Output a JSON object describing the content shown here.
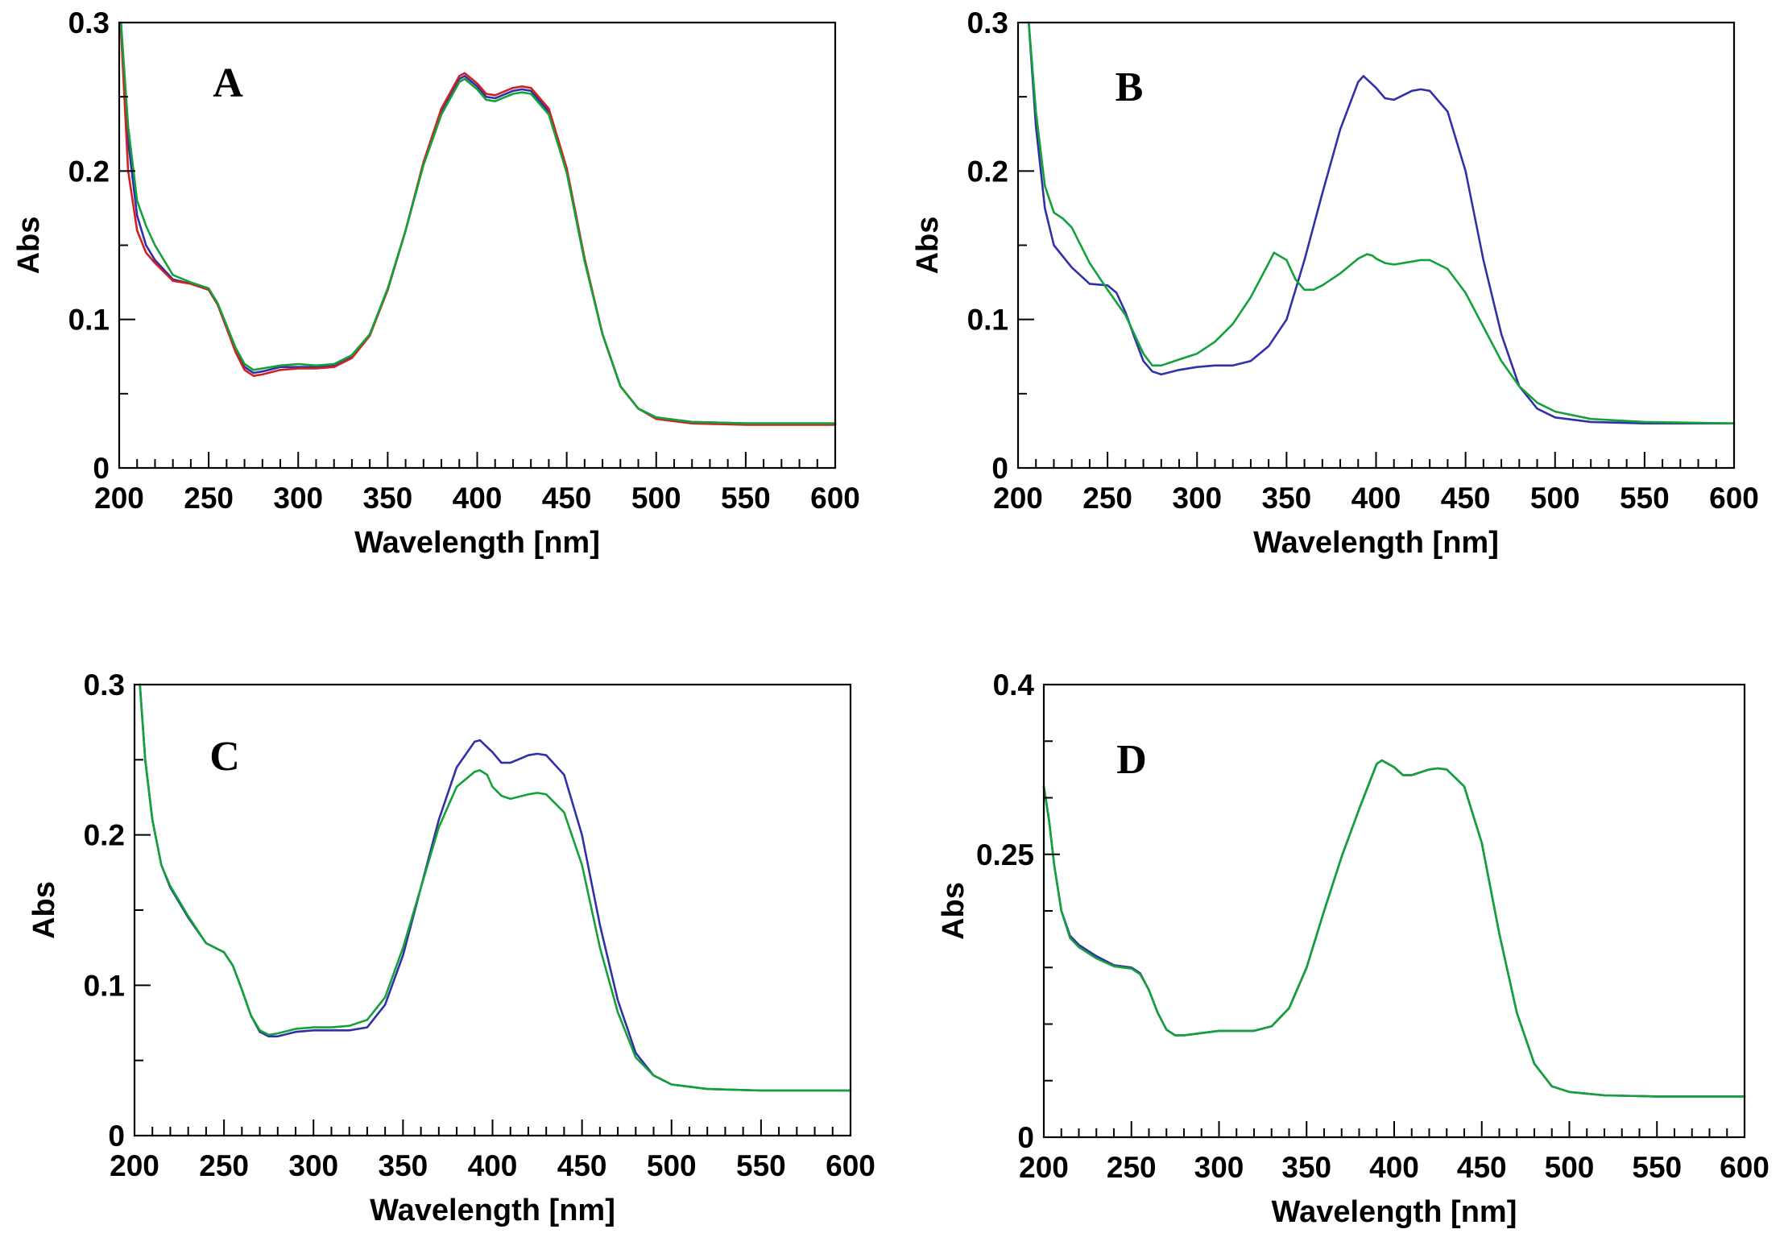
{
  "chart_data": [
    {
      "panel": "A",
      "type": "line",
      "xlabel": "Wavelength [nm]",
      "ylabel": "Abs",
      "xlim": [
        200,
        600
      ],
      "ylim": [
        0,
        0.3
      ],
      "xticks": [
        200,
        250,
        300,
        350,
        400,
        450,
        500,
        550,
        600
      ],
      "yticks": [
        0,
        0.1,
        0.2,
        0.3
      ],
      "ytick_labels": [
        "0",
        "0.1",
        "0.2",
        "0.3"
      ],
      "grid": false,
      "series": [
        {
          "name": "blue",
          "color": "#3030a8",
          "x": [
            201,
            205,
            210,
            215,
            220,
            230,
            240,
            250,
            255,
            260,
            265,
            270,
            275,
            280,
            290,
            300,
            310,
            320,
            330,
            340,
            350,
            360,
            370,
            380,
            390,
            393,
            400,
            405,
            410,
            420,
            425,
            430,
            440,
            450,
            460,
            470,
            480,
            490,
            500,
            520,
            550,
            600
          ],
          "y": [
            0.3,
            0.22,
            0.17,
            0.15,
            0.14,
            0.127,
            0.124,
            0.12,
            0.11,
            0.095,
            0.08,
            0.068,
            0.064,
            0.065,
            0.068,
            0.068,
            0.068,
            0.069,
            0.075,
            0.09,
            0.12,
            0.16,
            0.205,
            0.24,
            0.262,
            0.264,
            0.257,
            0.25,
            0.249,
            0.254,
            0.255,
            0.254,
            0.24,
            0.2,
            0.14,
            0.09,
            0.055,
            0.04,
            0.034,
            0.031,
            0.03,
            0.03
          ]
        },
        {
          "name": "red",
          "color": "#d42020",
          "x": [
            201,
            205,
            210,
            215,
            220,
            230,
            240,
            250,
            255,
            260,
            265,
            270,
            275,
            280,
            290,
            300,
            310,
            320,
            330,
            340,
            350,
            360,
            370,
            380,
            390,
            393,
            400,
            405,
            410,
            420,
            425,
            430,
            440,
            450,
            460,
            470,
            480,
            490,
            500,
            520,
            550,
            600
          ],
          "y": [
            0.295,
            0.2,
            0.16,
            0.145,
            0.138,
            0.126,
            0.124,
            0.12,
            0.11,
            0.094,
            0.078,
            0.066,
            0.062,
            0.063,
            0.066,
            0.067,
            0.067,
            0.068,
            0.074,
            0.089,
            0.12,
            0.16,
            0.206,
            0.242,
            0.264,
            0.266,
            0.259,
            0.252,
            0.251,
            0.256,
            0.257,
            0.256,
            0.242,
            0.202,
            0.141,
            0.09,
            0.055,
            0.04,
            0.033,
            0.03,
            0.029,
            0.029
          ]
        },
        {
          "name": "green",
          "color": "#13a13a",
          "x": [
            201,
            205,
            210,
            215,
            220,
            230,
            240,
            250,
            255,
            260,
            265,
            270,
            275,
            280,
            290,
            300,
            310,
            320,
            330,
            340,
            350,
            360,
            370,
            380,
            390,
            393,
            400,
            405,
            410,
            420,
            425,
            430,
            440,
            450,
            460,
            470,
            480,
            490,
            500,
            520,
            550,
            600
          ],
          "y": [
            0.3,
            0.23,
            0.18,
            0.163,
            0.15,
            0.13,
            0.125,
            0.121,
            0.111,
            0.096,
            0.081,
            0.07,
            0.066,
            0.067,
            0.069,
            0.07,
            0.069,
            0.07,
            0.076,
            0.09,
            0.121,
            0.16,
            0.204,
            0.238,
            0.26,
            0.262,
            0.255,
            0.248,
            0.247,
            0.252,
            0.253,
            0.252,
            0.238,
            0.199,
            0.139,
            0.09,
            0.055,
            0.04,
            0.034,
            0.031,
            0.03,
            0.03
          ]
        }
      ]
    },
    {
      "panel": "B",
      "type": "line",
      "xlabel": "Wavelength [nm]",
      "ylabel": "Abs",
      "xlim": [
        200,
        600
      ],
      "ylim": [
        0,
        0.3
      ],
      "xticks": [
        200,
        250,
        300,
        350,
        400,
        450,
        500,
        550,
        600
      ],
      "yticks": [
        0,
        0.1,
        0.2,
        0.3
      ],
      "ytick_labels": [
        "0",
        "0.1",
        "0.2",
        "0.3"
      ],
      "grid": false,
      "series": [
        {
          "name": "blue",
          "color": "#3030a8",
          "x": [
            206,
            210,
            215,
            220,
            230,
            240,
            250,
            255,
            260,
            265,
            270,
            275,
            280,
            290,
            300,
            310,
            320,
            330,
            340,
            350,
            360,
            370,
            380,
            390,
            393,
            400,
            405,
            410,
            420,
            425,
            430,
            440,
            450,
            460,
            470,
            480,
            490,
            500,
            520,
            550,
            600
          ],
          "y": [
            0.3,
            0.23,
            0.175,
            0.15,
            0.135,
            0.124,
            0.123,
            0.118,
            0.105,
            0.088,
            0.072,
            0.065,
            0.063,
            0.066,
            0.068,
            0.069,
            0.069,
            0.072,
            0.082,
            0.1,
            0.14,
            0.185,
            0.228,
            0.26,
            0.264,
            0.256,
            0.249,
            0.248,
            0.254,
            0.255,
            0.254,
            0.24,
            0.2,
            0.14,
            0.09,
            0.055,
            0.04,
            0.034,
            0.031,
            0.03,
            0.03
          ]
        },
        {
          "name": "green",
          "color": "#13a13a",
          "x": [
            206,
            210,
            215,
            220,
            225,
            230,
            240,
            250,
            260,
            270,
            275,
            280,
            290,
            300,
            310,
            320,
            330,
            340,
            343,
            350,
            355,
            360,
            365,
            370,
            380,
            390,
            395,
            398,
            400,
            405,
            410,
            420,
            425,
            430,
            440,
            450,
            460,
            470,
            480,
            490,
            500,
            520,
            550,
            600
          ],
          "y": [
            0.3,
            0.24,
            0.19,
            0.172,
            0.168,
            0.162,
            0.138,
            0.12,
            0.103,
            0.077,
            0.069,
            0.069,
            0.073,
            0.077,
            0.085,
            0.097,
            0.115,
            0.138,
            0.145,
            0.14,
            0.127,
            0.12,
            0.12,
            0.123,
            0.131,
            0.141,
            0.144,
            0.143,
            0.141,
            0.138,
            0.137,
            0.139,
            0.14,
            0.14,
            0.134,
            0.118,
            0.095,
            0.072,
            0.055,
            0.044,
            0.038,
            0.033,
            0.031,
            0.03
          ]
        }
      ]
    },
    {
      "panel": "C",
      "type": "line",
      "xlabel": "Wavelength [nm]",
      "ylabel": "Abs",
      "xlim": [
        200,
        600
      ],
      "ylim": [
        0,
        0.3
      ],
      "xticks": [
        200,
        250,
        300,
        350,
        400,
        450,
        500,
        550,
        600
      ],
      "yticks": [
        0,
        0.1,
        0.2,
        0.3
      ],
      "ytick_labels": [
        "0",
        "0.1",
        "0.2",
        "0.3"
      ],
      "grid": false,
      "series": [
        {
          "name": "blue",
          "color": "#3030a8",
          "x": [
            203,
            206,
            210,
            215,
            220,
            230,
            240,
            250,
            255,
            260,
            265,
            270,
            275,
            280,
            290,
            300,
            310,
            320,
            330,
            340,
            350,
            360,
            370,
            380,
            390,
            393,
            400,
            405,
            410,
            420,
            425,
            430,
            440,
            450,
            460,
            470,
            480,
            490,
            500,
            520,
            550,
            600
          ],
          "y": [
            0.3,
            0.25,
            0.21,
            0.18,
            0.165,
            0.145,
            0.128,
            0.122,
            0.113,
            0.097,
            0.08,
            0.069,
            0.066,
            0.066,
            0.069,
            0.07,
            0.07,
            0.07,
            0.072,
            0.087,
            0.12,
            0.165,
            0.21,
            0.245,
            0.262,
            0.263,
            0.255,
            0.248,
            0.248,
            0.253,
            0.254,
            0.253,
            0.24,
            0.2,
            0.14,
            0.09,
            0.055,
            0.04,
            0.034,
            0.031,
            0.03,
            0.03
          ]
        },
        {
          "name": "green",
          "color": "#13a13a",
          "x": [
            203,
            206,
            210,
            215,
            220,
            230,
            240,
            250,
            255,
            260,
            265,
            270,
            275,
            280,
            290,
            300,
            310,
            320,
            330,
            340,
            350,
            360,
            370,
            380,
            390,
            393,
            397,
            400,
            405,
            410,
            420,
            425,
            430,
            440,
            450,
            460,
            470,
            480,
            490,
            500,
            520,
            550,
            600
          ],
          "y": [
            0.3,
            0.25,
            0.21,
            0.18,
            0.166,
            0.146,
            0.128,
            0.122,
            0.113,
            0.097,
            0.08,
            0.07,
            0.067,
            0.068,
            0.071,
            0.072,
            0.072,
            0.073,
            0.077,
            0.092,
            0.125,
            0.165,
            0.205,
            0.232,
            0.242,
            0.243,
            0.24,
            0.232,
            0.226,
            0.224,
            0.227,
            0.228,
            0.227,
            0.215,
            0.18,
            0.125,
            0.082,
            0.052,
            0.04,
            0.034,
            0.031,
            0.03,
            0.03
          ]
        }
      ]
    },
    {
      "panel": "D",
      "type": "line",
      "xlabel": "Wavelength [nm]",
      "ylabel": "Abs",
      "xlim": [
        200,
        600
      ],
      "ylim": [
        0,
        0.4
      ],
      "xticks": [
        200,
        250,
        300,
        350,
        400,
        450,
        500,
        550,
        600
      ],
      "yticks": [
        0,
        0.25,
        0.4
      ],
      "ytick_labels": [
        "0",
        "0.25",
        "0.4"
      ],
      "grid": false,
      "series": [
        {
          "name": "blue",
          "color": "#3030a8",
          "x": [
            200,
            203,
            206,
            210,
            215,
            220,
            230,
            240,
            250,
            255,
            260,
            265,
            270,
            275,
            280,
            290,
            300,
            310,
            320,
            330,
            340,
            350,
            360,
            370,
            380,
            390,
            393,
            400,
            405,
            410,
            420,
            425,
            430,
            440,
            450,
            460,
            470,
            480,
            490,
            500,
            520,
            550,
            600
          ],
          "y": [
            0.31,
            0.28,
            0.24,
            0.2,
            0.178,
            0.17,
            0.16,
            0.152,
            0.15,
            0.145,
            0.13,
            0.11,
            0.095,
            0.09,
            0.09,
            0.092,
            0.094,
            0.094,
            0.094,
            0.098,
            0.114,
            0.15,
            0.2,
            0.248,
            0.29,
            0.33,
            0.333,
            0.327,
            0.32,
            0.32,
            0.325,
            0.326,
            0.325,
            0.31,
            0.26,
            0.18,
            0.11,
            0.065,
            0.045,
            0.04,
            0.037,
            0.036,
            0.036
          ]
        },
        {
          "name": "green",
          "color": "#13a13a",
          "x": [
            200,
            203,
            206,
            210,
            215,
            220,
            230,
            240,
            250,
            255,
            260,
            265,
            270,
            275,
            280,
            290,
            300,
            310,
            320,
            330,
            340,
            350,
            360,
            370,
            380,
            390,
            393,
            400,
            405,
            410,
            420,
            425,
            430,
            440,
            450,
            460,
            470,
            480,
            490,
            500,
            520,
            550,
            600
          ],
          "y": [
            0.31,
            0.28,
            0.24,
            0.2,
            0.176,
            0.168,
            0.158,
            0.151,
            0.149,
            0.144,
            0.13,
            0.11,
            0.095,
            0.09,
            0.09,
            0.092,
            0.094,
            0.094,
            0.094,
            0.098,
            0.114,
            0.15,
            0.2,
            0.248,
            0.29,
            0.33,
            0.333,
            0.327,
            0.32,
            0.32,
            0.325,
            0.326,
            0.325,
            0.31,
            0.26,
            0.18,
            0.11,
            0.065,
            0.045,
            0.04,
            0.037,
            0.036,
            0.036
          ]
        }
      ]
    }
  ]
}
